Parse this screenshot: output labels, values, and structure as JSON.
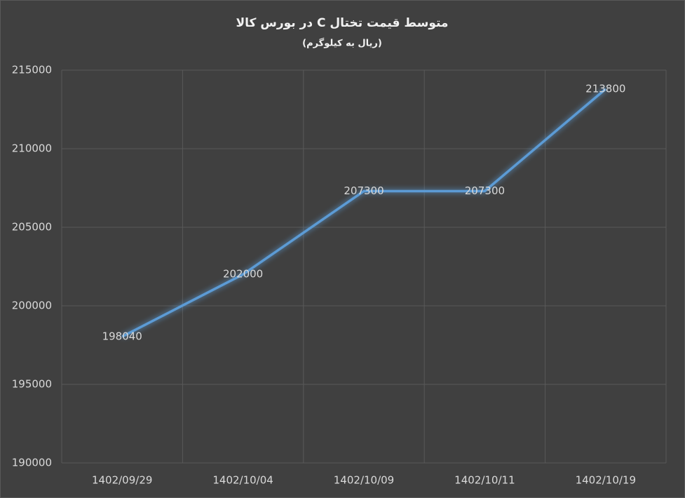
{
  "chart_data": {
    "type": "line",
    "title": "متوسط قیمت تختال C در بورس کالا",
    "subtitle": "(ریال به کیلوگرم)",
    "categories": [
      "1402/09/29",
      "1402/10/04",
      "1402/10/09",
      "1402/10/11",
      "1402/10/19"
    ],
    "values": [
      198040,
      202000,
      207300,
      207300,
      213800
    ],
    "color": "#5b9bd5",
    "ylim": [
      190000,
      215000
    ],
    "yticks": [
      190000,
      195000,
      200000,
      205000,
      210000,
      215000
    ],
    "grid": true
  }
}
